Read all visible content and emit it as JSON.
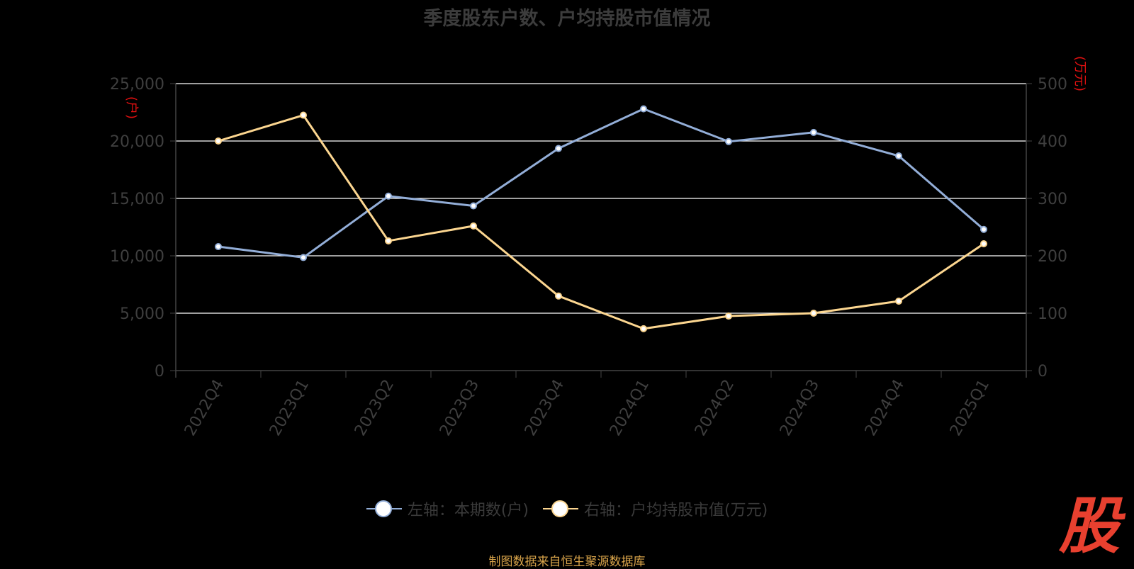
{
  "title": "季度股东户数、户均持股市值情况",
  "source": "制图数据来自恒生聚源数据库",
  "logo_text": "股",
  "colors": {
    "series_left": "#93aed8",
    "series_right": "#fcd690",
    "axis_unit": "#e01010",
    "tick_text": "#3f3f3f",
    "grid": "#ffffff"
  },
  "chart_data": {
    "type": "line",
    "categories": [
      "2022Q4",
      "2023Q1",
      "2023Q2",
      "2023Q3",
      "2023Q4",
      "2024Q1",
      "2024Q2",
      "2024Q3",
      "2024Q4",
      "2025Q1"
    ],
    "series": [
      {
        "name": "左轴：本期数(户)",
        "axis": "left",
        "values": [
          10800,
          9850,
          15200,
          14350,
          19350,
          22800,
          19950,
          20750,
          18700,
          12300
        ]
      },
      {
        "name": "右轴：户均持股市值(万元)",
        "axis": "right",
        "values": [
          400,
          445,
          226,
          252,
          130,
          73,
          95,
          100,
          121,
          221
        ]
      }
    ],
    "y_left": {
      "unit": "(户)",
      "range": [
        0,
        25000
      ],
      "ticks": [
        "0",
        "5,000",
        "10,000",
        "15,000",
        "20,000",
        "25,000"
      ]
    },
    "y_right": {
      "unit": "(万元)",
      "range": [
        0,
        500
      ],
      "ticks": [
        "0",
        "100",
        "200",
        "300",
        "400",
        "500"
      ]
    },
    "grid": true,
    "legend_position": "bottom"
  }
}
